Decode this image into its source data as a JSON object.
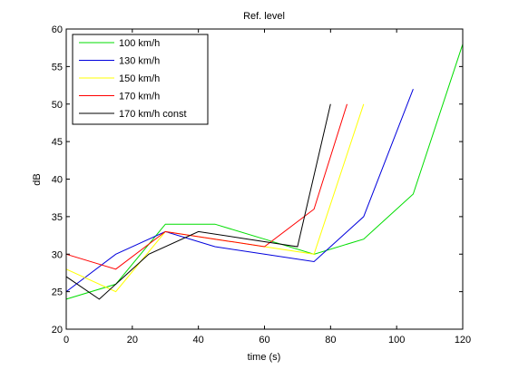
{
  "chart_data": {
    "type": "line",
    "title": "Ref. level",
    "xlabel": "time (s)",
    "ylabel": "dB",
    "xlim": [
      0,
      120
    ],
    "ylim": [
      20,
      60
    ],
    "xticks": [
      0,
      20,
      40,
      60,
      80,
      100,
      120
    ],
    "yticks": [
      20,
      25,
      30,
      35,
      40,
      45,
      50,
      55,
      60
    ],
    "grid": false,
    "legend_position": "top-left",
    "series": [
      {
        "name": "100 km/h",
        "color": "#00dd00",
        "x": [
          0,
          15,
          30,
          45,
          60,
          75,
          90,
          105,
          120
        ],
        "y": [
          24,
          26,
          34,
          34,
          32,
          30,
          32,
          38,
          58
        ]
      },
      {
        "name": "130 km/h",
        "color": "#0000dd",
        "x": [
          0,
          15,
          30,
          45,
          60,
          75,
          90,
          105
        ],
        "y": [
          25,
          30,
          33,
          31,
          30,
          29,
          35,
          52
        ]
      },
      {
        "name": "150 km/h",
        "color": "#ffff00",
        "x": [
          0,
          15,
          30,
          45,
          60,
          75,
          90
        ],
        "y": [
          28,
          25,
          33,
          32,
          31,
          30,
          50
        ]
      },
      {
        "name": "170 km/h",
        "color": "#ff0000",
        "x": [
          0,
          15,
          30,
          45,
          60,
          75,
          85
        ],
        "y": [
          30,
          28,
          33,
          32,
          31,
          36,
          50
        ]
      },
      {
        "name": "170 km/h const",
        "color": "#000000",
        "x": [
          0,
          10,
          25,
          40,
          55,
          70,
          80
        ],
        "y": [
          27,
          24,
          30,
          33,
          32,
          31,
          50
        ]
      }
    ]
  }
}
